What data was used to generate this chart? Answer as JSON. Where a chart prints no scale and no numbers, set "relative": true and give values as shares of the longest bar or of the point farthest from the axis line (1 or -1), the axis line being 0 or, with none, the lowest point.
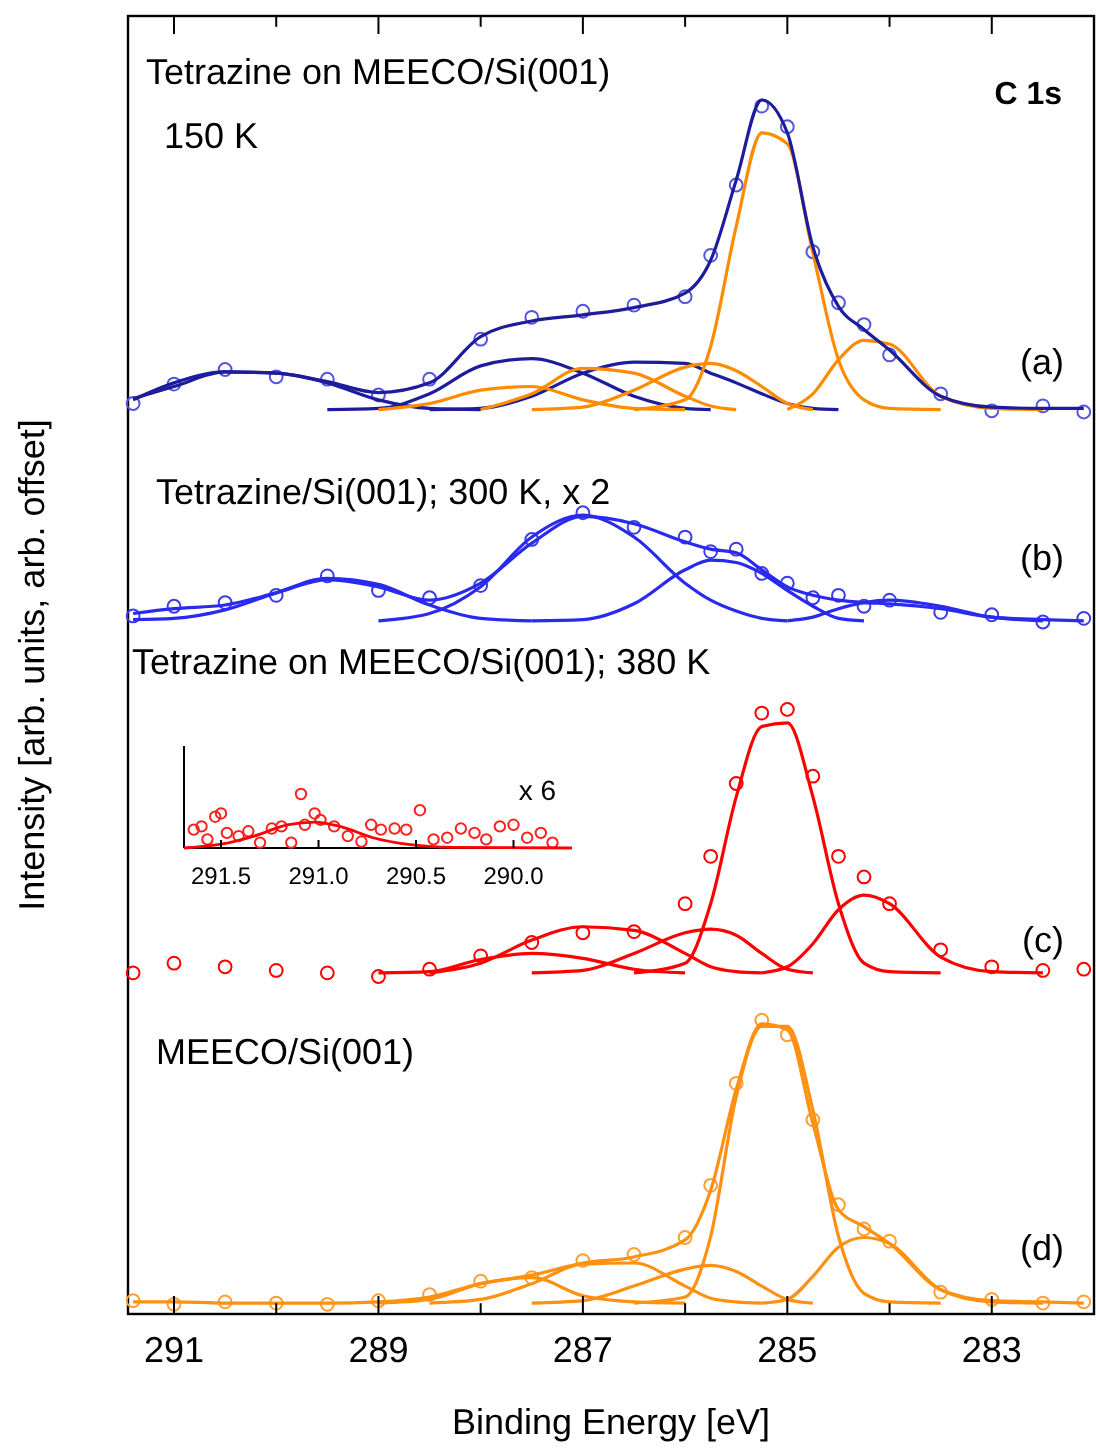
{
  "chart_data": [
    {
      "type": "line",
      "title": "C 1s",
      "xlabel": "Binding Energy [eV]",
      "ylabel": "Intensity [arb. units, arb. offset]",
      "relative": true,
      "tick_labels": "x",
      "xlim": [
        291.45,
        282
      ],
      "xticks": [
        291,
        {
          "value": 290,
          "label": null
        },
        289,
        {
          "value": 288,
          "label": null
        },
        287,
        {
          "value": 286,
          "label": null
        },
        285,
        {
          "value": 284,
          "label": null
        },
        283
      ],
      "x": [
        291.4,
        291,
        290.5,
        290,
        289.5,
        289,
        288.5,
        288,
        287.5,
        287,
        286.5,
        286,
        285.75,
        285.5,
        285.25,
        285,
        284.75,
        284.5,
        284.25,
        284,
        283.5,
        283,
        282.5,
        282.1
      ],
      "annotations": [
        "Tetrazine on MEECO/Si(001)",
        "150 K",
        "(a)",
        "Tetrazine/Si(001); 300 K, x 2",
        "(b)",
        "Tetrazine on MEECO/Si(001); 380 K",
        "(c)",
        "MEECO/Si(001)",
        "(d)"
      ],
      "series": [
        {
          "type": "scatter",
          "marker": "circle",
          "color": "#5555dd",
          "values": [
            0.75,
            0.766,
            0.778,
            0.772,
            0.77,
            0.757,
            0.77,
            0.803,
            0.821,
            0.826,
            0.831,
            0.838,
            0.872,
            0.93,
            0.995,
            0.978,
            0.875,
            0.833,
            0.815,
            0.79,
            0.758,
            0.744,
            0.748,
            0.743
          ]
        },
        {
          "color": "#1c1c9c",
          "values": [
            0.753,
            0.767,
            0.776,
            0.775,
            0.767,
            0.753,
            0.746,
            0.745,
            null,
            null,
            null,
            null,
            null,
            null,
            null,
            null,
            null,
            null,
            null,
            null,
            null,
            null,
            null,
            null
          ]
        },
        {
          "color": "#1c1c9c",
          "values": [
            null,
            null,
            null,
            null,
            0.745,
            0.746,
            0.758,
            0.781,
            0.787,
            0.775,
            0.756,
            0.746,
            0.745,
            null,
            null,
            null,
            null,
            null,
            null,
            null,
            null,
            null,
            null,
            null
          ]
        },
        {
          "color": "#1c1c9c",
          "values": [
            null,
            null,
            null,
            null,
            null,
            null,
            0.745,
            0.746,
            0.756,
            0.775,
            0.784,
            0.783,
            0.775,
            0.767,
            0.758,
            0.75,
            0.746,
            0.745,
            null,
            null,
            null,
            null,
            null,
            null
          ]
        },
        {
          "color": "#ff8c00",
          "values": [
            null,
            null,
            null,
            null,
            null,
            0.745,
            0.75,
            0.761,
            0.764,
            0.753,
            0.746,
            0.745,
            null,
            null,
            null,
            null,
            null,
            null,
            null,
            null,
            null,
            null,
            null,
            null
          ]
        },
        {
          "color": "#ff8c00",
          "values": [
            null,
            null,
            null,
            null,
            null,
            null,
            null,
            0.745,
            0.758,
            0.779,
            0.775,
            0.756,
            0.748,
            0.745,
            null,
            null,
            null,
            null,
            null,
            null,
            null,
            null,
            null,
            null
          ]
        },
        {
          "color": "#ff8c00",
          "values": [
            null,
            null,
            null,
            null,
            null,
            null,
            null,
            null,
            0.745,
            0.747,
            0.761,
            0.78,
            0.783,
            0.777,
            0.764,
            0.75,
            0.745,
            null,
            null,
            null,
            null,
            null,
            null,
            null
          ]
        },
        {
          "color": "#ff8c00",
          "values": [
            null,
            null,
            null,
            null,
            null,
            null,
            null,
            null,
            null,
            null,
            0.745,
            0.753,
            0.797,
            0.896,
            0.973,
            0.964,
            0.874,
            0.786,
            0.753,
            0.746,
            0.745,
            null,
            null,
            null
          ]
        },
        {
          "color": "#ff8c00",
          "values": [
            null,
            null,
            null,
            null,
            null,
            null,
            null,
            null,
            null,
            null,
            null,
            null,
            null,
            null,
            null,
            0.745,
            0.758,
            0.786,
            0.802,
            0.799,
            0.756,
            0.746,
            0.745,
            null
          ]
        },
        {
          "color": "#1c1c9c",
          "values": [
            0.754,
            0.764,
            0.776,
            0.775,
            0.768,
            0.759,
            0.767,
            0.805,
            0.818,
            0.823,
            0.829,
            0.841,
            0.868,
            0.934,
            1,
            0.973,
            0.879,
            0.83,
            0.811,
            0.794,
            0.756,
            0.747,
            0.746,
            0.746
          ]
        },
        {
          "type": "scatter",
          "marker": "circle",
          "color": "#3b3bee",
          "values": [
            0.575,
            0.583,
            0.586,
            0.592,
            0.608,
            0.596,
            0.59,
            0.6,
            0.638,
            0.66,
            0.648,
            0.64,
            0.628,
            0.63,
            0.61,
            0.602,
            0.59,
            0.592,
            0.583,
            0.588,
            0.578,
            0.576,
            0.57,
            0.573
          ]
        },
        {
          "color": "#2a2aee",
          "values": [
            0.572,
            0.573,
            0.58,
            0.594,
            0.606,
            0.601,
            0.584,
            0.573,
            0.571,
            null,
            null,
            null,
            null,
            null,
            null,
            null,
            null,
            null,
            null,
            null,
            null,
            null,
            null,
            null
          ]
        },
        {
          "color": "#2a2aee",
          "values": [
            null,
            null,
            null,
            null,
            null,
            0.571,
            0.577,
            0.599,
            0.64,
            0.658,
            0.64,
            0.602,
            0.588,
            0.579,
            0.573,
            0.571,
            null,
            null,
            null,
            null,
            null,
            null,
            null,
            null
          ]
        },
        {
          "color": "#2a2aee",
          "values": [
            null,
            null,
            null,
            null,
            null,
            null,
            null,
            null,
            0.571,
            0.572,
            0.585,
            0.613,
            0.621,
            0.619,
            0.61,
            0.596,
            0.583,
            0.573,
            0.571,
            null,
            null,
            null,
            null,
            null
          ]
        },
        {
          "color": "#2a2aee",
          "values": [
            null,
            null,
            null,
            null,
            null,
            null,
            null,
            null,
            null,
            null,
            null,
            null,
            null,
            null,
            null,
            0.571,
            0.574,
            0.581,
            0.586,
            0.588,
            0.583,
            0.574,
            0.571,
            null
          ]
        },
        {
          "color": "#2a2aee",
          "values": [
            0.577,
            0.581,
            0.584,
            0.594,
            0.605,
            0.599,
            0.588,
            0.602,
            0.635,
            0.657,
            0.651,
            0.636,
            0.63,
            0.627,
            0.613,
            0.599,
            0.592,
            0.588,
            0.586,
            0.585,
            0.581,
            0.574,
            0.572,
            0.571
          ]
        },
        {
          "type": "scatter",
          "marker": "circle",
          "color": "#ff0000",
          "values": [
            0.281,
            0.289,
            0.286,
            0.283,
            0.281,
            0.278,
            0.284,
            0.295,
            0.306,
            0.314,
            0.315,
            0.338,
            0.377,
            0.437,
            0.495,
            0.498,
            0.443,
            0.377,
            0.36,
            0.338,
            0.3,
            0.286,
            0.283,
            0.284
          ]
        },
        {
          "color": "#ff0000",
          "values": [
            null,
            null,
            null,
            null,
            null,
            0.281,
            0.282,
            0.292,
            0.297,
            0.293,
            0.284,
            0.281,
            null,
            null,
            null,
            null,
            null,
            null,
            null,
            null,
            null,
            null,
            null,
            null
          ]
        },
        {
          "color": "#ff0000",
          "values": [
            null,
            null,
            null,
            null,
            null,
            null,
            0.281,
            0.289,
            0.308,
            0.319,
            0.316,
            0.297,
            0.286,
            0.282,
            0.281,
            null,
            null,
            null,
            null,
            null,
            null,
            null,
            null,
            null
          ]
        },
        {
          "color": "#ff0000",
          "values": [
            null,
            null,
            null,
            null,
            null,
            null,
            null,
            null,
            0.281,
            0.283,
            0.297,
            0.314,
            0.317,
            0.312,
            0.297,
            0.284,
            0.281,
            null,
            null,
            null,
            null,
            null,
            null,
            null
          ]
        },
        {
          "color": "#ff0000",
          "values": [
            null,
            null,
            null,
            null,
            null,
            null,
            null,
            null,
            null,
            null,
            0.281,
            0.289,
            0.338,
            0.426,
            0.484,
            0.487,
            0.426,
            0.338,
            0.289,
            0.282,
            0.281,
            null,
            null,
            null
          ]
        },
        {
          "color": "#ff0000",
          "values": [
            null,
            null,
            null,
            null,
            null,
            null,
            null,
            null,
            null,
            null,
            null,
            null,
            null,
            null,
            0.281,
            0.286,
            0.305,
            0.333,
            0.345,
            0.338,
            0.294,
            0.282,
            0.281,
            null
          ]
        },
        {
          "type": "scatter",
          "marker": "circle",
          "color": "#ffa033",
          "values": [
            0.011,
            0.008,
            0.01,
            0.009,
            0.008,
            0.011,
            0.016,
            0.027,
            0.03,
            0.044,
            0.049,
            0.063,
            0.106,
            0.19,
            0.242,
            0.23,
            0.16,
            0.09,
            0.07,
            0.06,
            0.018,
            0.012,
            0.009,
            0.01
          ]
        },
        {
          "color": "#ff9010",
          "values": [
            null,
            null,
            null,
            null,
            null,
            0.009,
            0.012,
            0.025,
            0.03,
            0.015,
            0.01,
            0.009,
            null,
            null,
            null,
            null,
            null,
            null,
            null,
            null,
            null,
            null,
            null,
            null
          ]
        },
        {
          "color": "#ff9010",
          "values": [
            null,
            null,
            null,
            null,
            null,
            null,
            0.009,
            0.012,
            0.025,
            0.041,
            0.042,
            0.023,
            0.013,
            0.01,
            0.009,
            null,
            null,
            null,
            null,
            null,
            null,
            null,
            null,
            null
          ]
        },
        {
          "color": "#ff9010",
          "values": [
            null,
            null,
            null,
            null,
            null,
            null,
            null,
            null,
            0.009,
            0.011,
            0.023,
            0.037,
            0.04,
            0.035,
            0.023,
            0.012,
            0.009,
            null,
            null,
            null,
            null,
            null,
            null,
            null
          ]
        },
        {
          "color": "#ff9010",
          "values": [
            null,
            null,
            null,
            null,
            null,
            null,
            null,
            null,
            null,
            null,
            0.009,
            0.014,
            0.064,
            0.179,
            0.237,
            0.237,
            0.168,
            0.064,
            0.017,
            0.01,
            0.009,
            null,
            null,
            null
          ]
        },
        {
          "color": "#ff9010",
          "values": [
            null,
            null,
            null,
            null,
            null,
            null,
            null,
            null,
            null,
            null,
            null,
            null,
            null,
            null,
            0.009,
            0.012,
            0.031,
            0.055,
            0.063,
            0.058,
            0.02,
            0.01,
            0.009,
            null
          ]
        },
        {
          "color": "#ff9010",
          "values": [
            0.01,
            0.01,
            0.009,
            0.009,
            0.009,
            0.01,
            0.014,
            0.025,
            0.032,
            0.042,
            0.047,
            0.061,
            0.102,
            0.185,
            0.239,
            0.234,
            0.157,
            0.086,
            0.072,
            0.058,
            0.02,
            0.011,
            0.01,
            0.009
          ]
        }
      ]
    },
    {
      "type": "scatter",
      "relative": true,
      "tick_labels": "x",
      "annotations": [
        "x 6"
      ],
      "xlim": [
        291.69,
        289.7
      ],
      "xticks": [
        291.5,
        {
          "value": 291.0,
          "label": "291.0"
        },
        290.5,
        {
          "value": 290.0,
          "label": "290.0"
        }
      ],
      "series": [
        {
          "marker": "circle",
          "color": "#ff2020",
          "x": [
            291.64,
            291.6,
            291.57,
            291.53,
            291.5,
            291.47,
            291.41,
            291.36,
            291.3,
            291.24,
            291.19,
            291.14,
            291.09,
            291.07,
            291.02,
            290.99,
            290.92,
            290.85,
            290.78,
            290.73,
            290.68,
            290.61,
            290.55,
            290.48,
            290.41,
            290.34,
            290.27,
            290.2,
            290.14,
            290.07,
            290.0,
            289.93,
            289.86,
            289.8
          ],
          "values": [
            0.34,
            0.4,
            0.16,
            0.58,
            0.64,
            0.28,
            0.22,
            0.31,
            0.1,
            0.36,
            0.4,
            0.1,
            1,
            0.43,
            0.64,
            0.52,
            0.4,
            0.22,
            0.12,
            0.43,
            0.34,
            0.36,
            0.34,
            0.7,
            0.16,
            0.19,
            0.36,
            0.28,
            0.16,
            0.4,
            0.43,
            0.19,
            0.28,
            0.1
          ]
        },
        {
          "type": "line",
          "color": "#ff0000",
          "x": [
            291.69,
            291.5,
            291.33,
            291.16,
            291.02,
            290.89,
            290.72,
            290.55,
            290.31,
            289.7
          ],
          "values": [
            0,
            0.07,
            0.22,
            0.43,
            0.48,
            0.4,
            0.19,
            0.07,
            0.01,
            0
          ]
        }
      ]
    }
  ]
}
